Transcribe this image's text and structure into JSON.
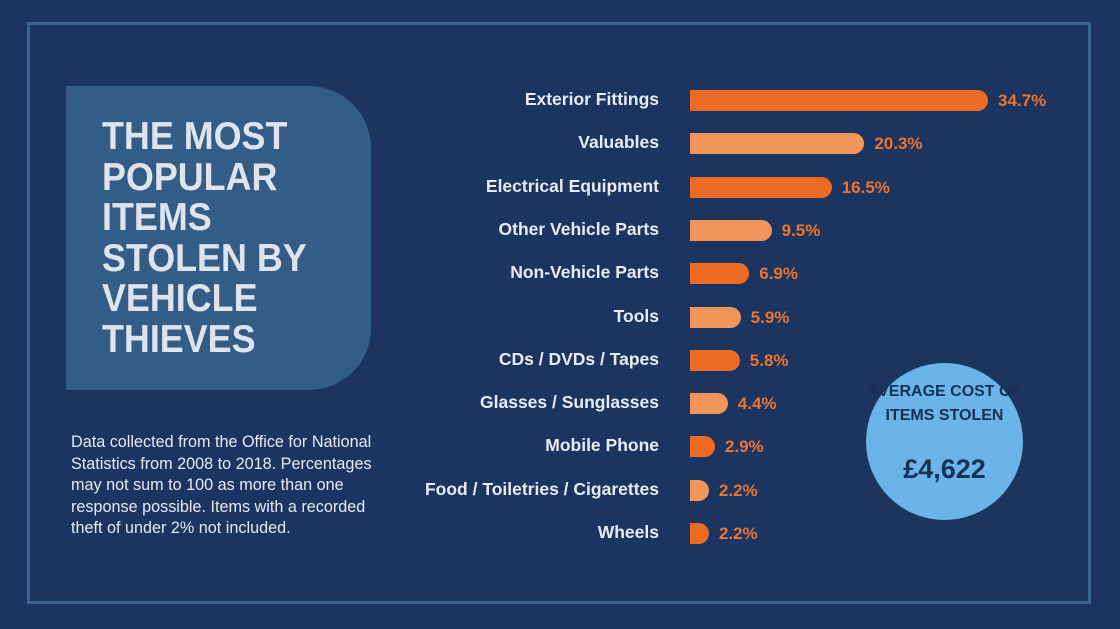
{
  "title": "THE MOST POPULAR ITEMS STOLEN BY VEHICLE THIEVES",
  "note": "Data collected from the Office for National Statistics from 2008 to 2018. Percentages may not sum to 100 as more than one response possible. Items with a recorded theft of under 2% not included.",
  "badge": {
    "label": "AVERAGE COST OF ITEMS STOLEN",
    "value": "£4,622"
  },
  "colors": {
    "background": "#1b3560",
    "bar_dark": "#ee6b24",
    "bar_light": "#f2955c",
    "value_text": "#ee742e",
    "badge": "#6bb4e8"
  },
  "chart_data": {
    "type": "bar",
    "orientation": "horizontal",
    "categories": [
      "Exterior Fittings",
      "Valuables",
      "Electrical Equipment",
      "Other Vehicle Parts",
      "Non-Vehicle Parts",
      "Tools",
      "CDs / DVDs / Tapes",
      "Glasses / Sunglasses",
      "Mobile Phone",
      "Food / Toiletries / Cigarettes",
      "Wheels"
    ],
    "values": [
      34.7,
      20.3,
      16.5,
      9.5,
      6.9,
      5.9,
      5.8,
      4.4,
      2.9,
      2.2,
      2.2
    ],
    "value_labels": [
      "34.7%",
      "20.3%",
      "16.5%",
      "9.5%",
      "6.9%",
      "5.9%",
      "5.8%",
      "4.4%",
      "2.9%",
      "2.2%",
      "2.2%"
    ],
    "unit": "%",
    "grid": false
  }
}
